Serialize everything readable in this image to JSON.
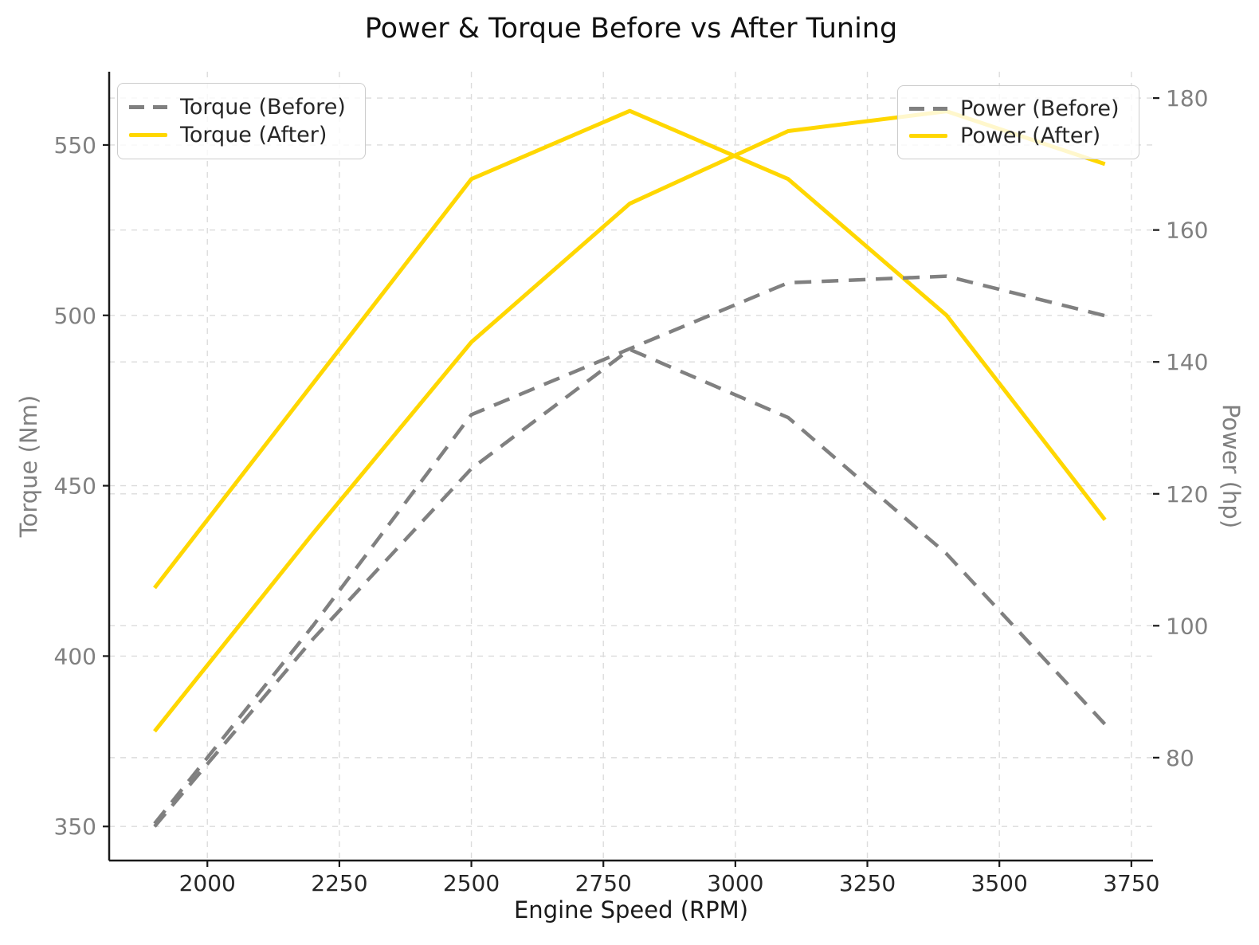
{
  "title": "Power & Torque Before vs After Tuning",
  "chart_data": {
    "type": "line",
    "x": [
      1900,
      2200,
      2500,
      2800,
      3100,
      3400,
      3700
    ],
    "series": [
      {
        "name": "Torque (Before)",
        "axis": "left",
        "color": "#808080",
        "style": "dashed",
        "values": [
          350,
          405,
          455,
          490,
          470,
          430,
          380
        ]
      },
      {
        "name": "Torque (After)",
        "axis": "left",
        "color": "#FFD700",
        "style": "solid",
        "values": [
          420,
          480,
          540,
          560,
          540,
          500,
          440
        ]
      },
      {
        "name": "Power (Before)",
        "axis": "right",
        "color": "#808080",
        "style": "dashed",
        "values": [
          70,
          100,
          132,
          142,
          152,
          153,
          147
        ]
      },
      {
        "name": "Power (After)",
        "axis": "right",
        "color": "#FFD700",
        "style": "solid",
        "values": [
          84,
          114,
          143,
          164,
          175,
          178,
          170
        ]
      }
    ],
    "xlabel": "Engine Speed (RPM)",
    "ylabel_left": "Torque (Nm)",
    "ylabel_right": "Power (hp)",
    "x_ticks": [
      2000,
      2250,
      2500,
      2750,
      3000,
      3250,
      3500,
      3750
    ],
    "y_ticks_left": [
      350,
      400,
      450,
      500,
      550
    ],
    "y_ticks_right": [
      80,
      100,
      120,
      140,
      160,
      180
    ],
    "xlim": [
      1814,
      3791
    ],
    "ylim_left": [
      340,
      571.5
    ],
    "ylim_right": [
      64.4,
      184
    ],
    "grid": true,
    "legend_left_entries": [
      "Torque (Before)",
      "Torque (After)"
    ],
    "legend_right_entries": [
      "Power (Before)",
      "Power (After)"
    ],
    "colors": {
      "accent_yellow": "#FFD700",
      "series_gray": "#808080",
      "grid": "#dcdcdc",
      "spine": "#1a1a1a",
      "x_tick_label": "#262626",
      "y_tick_label": "#808080"
    }
  }
}
